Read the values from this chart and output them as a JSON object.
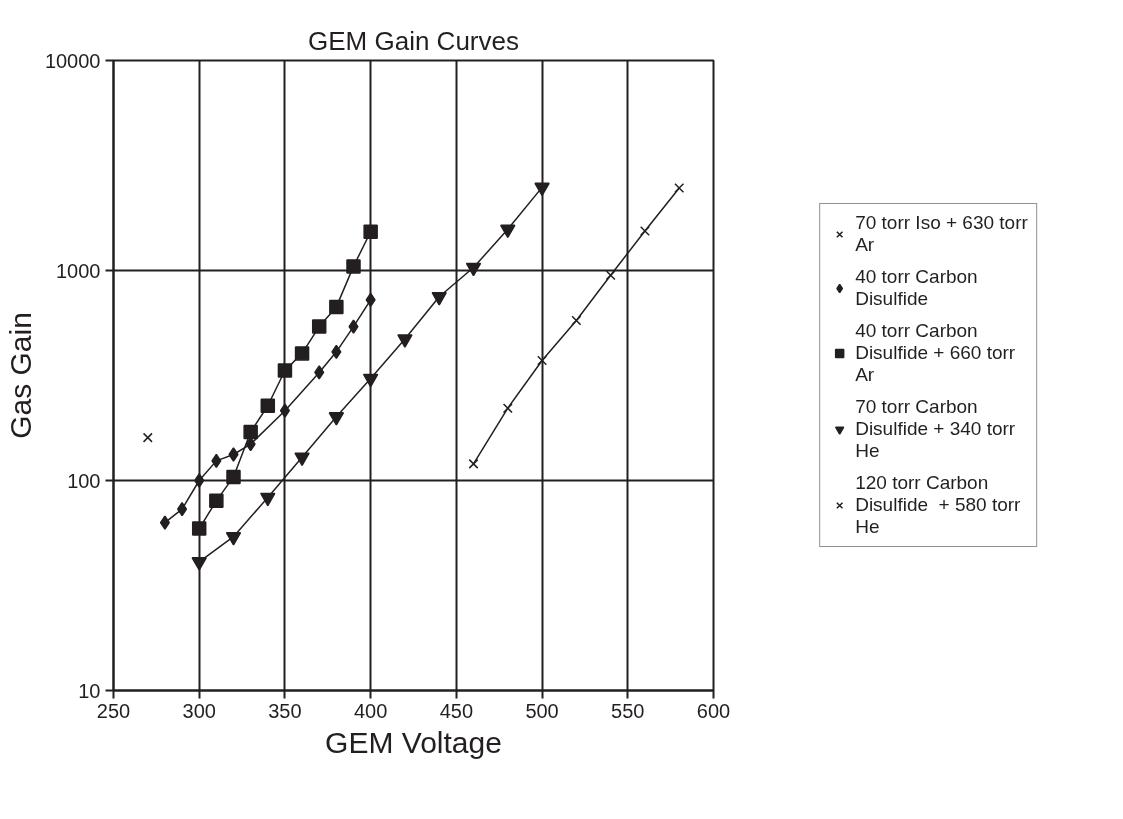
{
  "chart_data": {
    "type": "line",
    "title": "GEM Gain Curves",
    "xlabel": "GEM Voltage",
    "ylabel": "Gas Gain",
    "xlim": [
      250,
      600
    ],
    "xticks": [
      250,
      300,
      350,
      400,
      450,
      500,
      550,
      600
    ],
    "ylim": [
      10,
      10000
    ],
    "yticks": [
      10,
      100,
      1000,
      10000
    ],
    "log": "y",
    "grid": true,
    "legend": "right",
    "line_style": "solid",
    "series": [
      {
        "name": "70 torr Iso + 630 torr Ar",
        "type": "scatter",
        "marker": "cross",
        "color": "#231f20",
        "x": [
          270
        ],
        "values": [
          160
        ]
      },
      {
        "name": "40 torr Carbon Disulfide",
        "marker": "diamond",
        "color": "#231f20",
        "x": [
          280,
          290,
          300,
          310,
          320,
          330,
          350,
          370,
          380,
          390,
          400
        ],
        "values": [
          63,
          73,
          100,
          124,
          133,
          149,
          215,
          327,
          410,
          540,
          725
        ]
      },
      {
        "name": "40 torr Carbon Disulfide + 660 torr Ar",
        "marker": "square",
        "color": "#231f20",
        "x": [
          300,
          310,
          320,
          330,
          340,
          350,
          360,
          370,
          380,
          390,
          400
        ],
        "values": [
          59,
          80,
          104,
          170,
          227,
          334,
          403,
          541,
          671,
          1046,
          1530
        ]
      },
      {
        "name": "70 torr Carbon Disulfide + 340 torr He",
        "marker": "triangle",
        "color": "#231f20",
        "x": [
          300,
          320,
          340,
          360,
          380,
          400,
          420,
          440,
          460,
          480,
          500
        ],
        "values": [
          41,
          54,
          83,
          129,
          201,
          306,
          472,
          750,
          1033,
          1571,
          2488
        ]
      },
      {
        "name": "120 torr Carbon Disulfide  + 580 torr He",
        "marker": "cross",
        "color": "#231f20",
        "x": [
          460,
          480,
          500,
          520,
          540,
          560,
          580
        ],
        "values": [
          120,
          221,
          373,
          578,
          949,
          1542,
          2470
        ]
      }
    ]
  }
}
